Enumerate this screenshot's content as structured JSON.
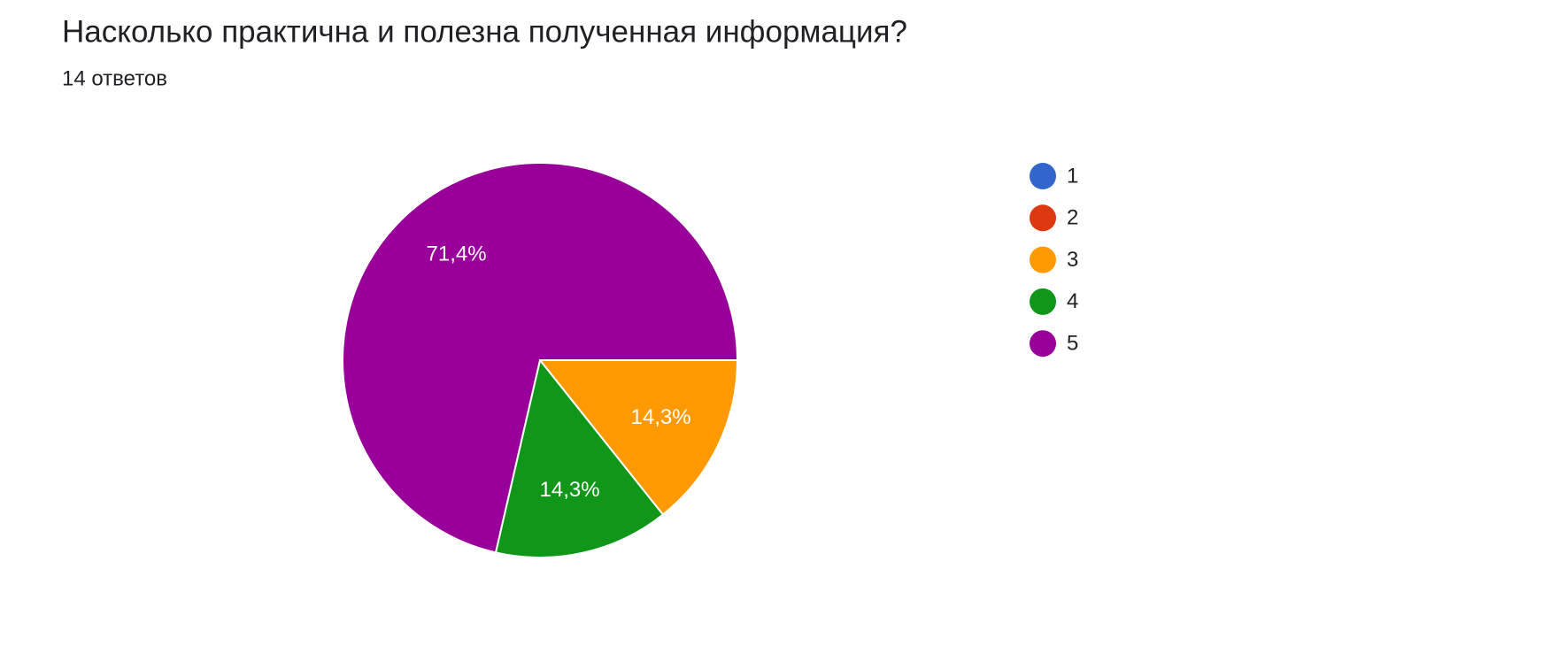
{
  "chart_data": {
    "type": "pie",
    "title": "Насколько практична и полезна полученная информация?",
    "subtitle": "14 ответов",
    "categories": [
      "1",
      "2",
      "3",
      "4",
      "5"
    ],
    "values": [
      0,
      0,
      14.3,
      14.3,
      71.4
    ],
    "value_labels": [
      null,
      null,
      "14,3%",
      "14,3%",
      "71,4%"
    ],
    "colors": [
      "#3366cc",
      "#dc3912",
      "#ff9900",
      "#109618",
      "#990099"
    ],
    "legend": "right"
  }
}
